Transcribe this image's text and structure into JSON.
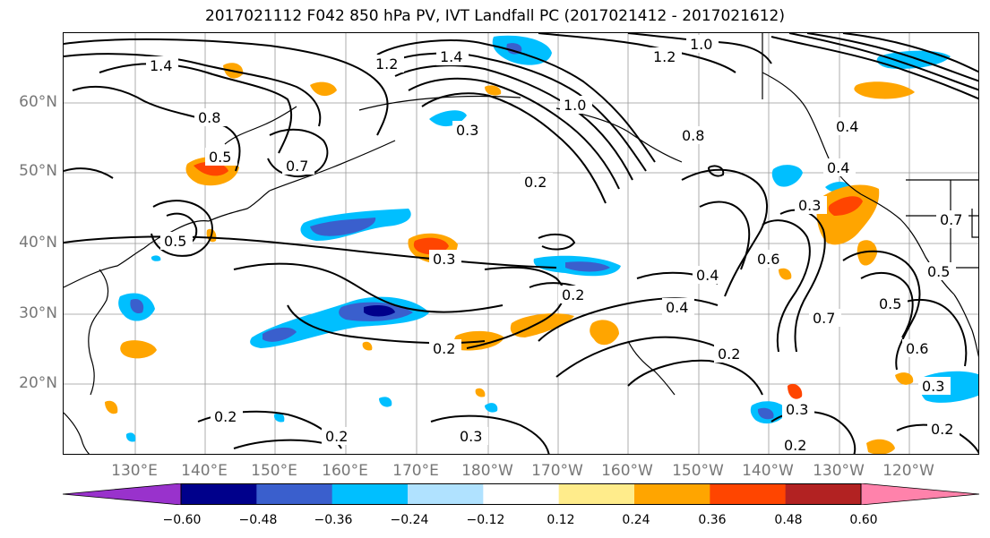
{
  "title": "2017021112 F042 850 hPa PV, IVT Landfall PC (2017021412 - 2017021612)",
  "lat_labels": [
    "60°N",
    "50°N",
    "40°N",
    "30°N",
    "20°N"
  ],
  "lon_labels": [
    "130°E",
    "140°E",
    "150°E",
    "160°E",
    "170°E",
    "180°W",
    "170°W",
    "160°W",
    "150°W",
    "140°W",
    "130°W",
    "120°W"
  ],
  "colorbar": {
    "ticks": [
      "−0.60",
      "−0.48",
      "−0.36",
      "−0.24",
      "−0.12",
      "0.12",
      "0.24",
      "0.36",
      "0.48",
      "0.60"
    ],
    "colors": [
      "#9932cc",
      "#00008b",
      "#3a5fcd",
      "#00bfff",
      "#b0e2ff",
      "#ffffff",
      "#ffec8b",
      "#ffa500",
      "#ff4500",
      "#b22222",
      "#ff82ab"
    ]
  },
  "contour_labels": [
    "1.4",
    "1.2",
    "1.0",
    "1.4",
    "1.2",
    "0.8",
    "1.0",
    "0.3",
    "0.8",
    "0.5",
    "0.7",
    "0.4",
    "0.4",
    "0.2",
    "0.3",
    "0.5",
    "0.3",
    "0.2",
    "0.7",
    "0.6",
    "0.4",
    "0.4",
    "0.5",
    "0.2",
    "0.7",
    "0.5",
    "0.6",
    "0.2",
    "0.3",
    "0.2",
    "0.2",
    "0.3",
    "0.2",
    "0.3",
    "0.2"
  ]
}
